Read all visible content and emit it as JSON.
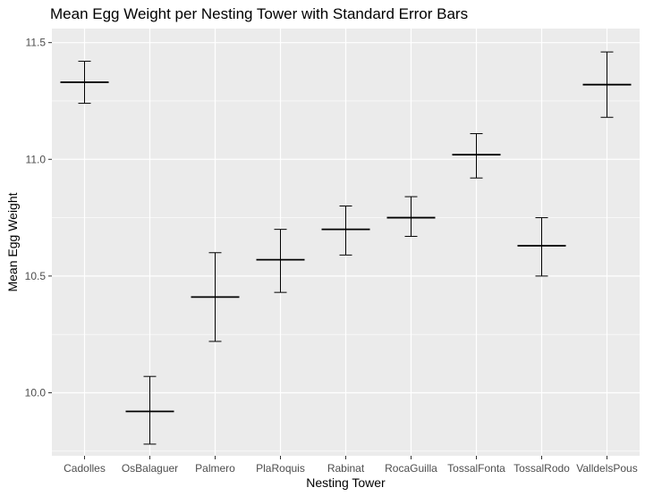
{
  "chart_data": {
    "type": "errorbar",
    "title": "Mean Egg Weight per Nesting Tower with Standard Error Bars",
    "xlabel": "Nesting Tower",
    "ylabel": "Mean Egg Weight",
    "ylim": [
      9.73,
      11.56
    ],
    "yticks": [
      10.0,
      10.5,
      11.0,
      11.5
    ],
    "ytick_labels": [
      "10.0",
      "10.5",
      "11.0",
      "11.5"
    ],
    "grid": true,
    "categories": [
      "Cadolles",
      "OsBalaguer",
      "Palmero",
      "PlaRoquis",
      "Rabinat",
      "RocaGuilla",
      "TossalFonta",
      "TossalRodo",
      "ValldelsPous"
    ],
    "means": [
      11.33,
      9.92,
      10.41,
      10.57,
      10.7,
      10.75,
      11.02,
      10.63,
      11.32
    ],
    "lower": [
      11.24,
      9.78,
      10.22,
      10.43,
      10.59,
      10.67,
      10.92,
      10.5,
      11.18
    ],
    "upper": [
      11.42,
      10.07,
      10.6,
      10.7,
      10.8,
      10.84,
      11.11,
      10.75,
      11.46
    ],
    "colors": {
      "panel": "#ebebeb",
      "grid": "#ffffff",
      "marks": "#000000"
    }
  }
}
